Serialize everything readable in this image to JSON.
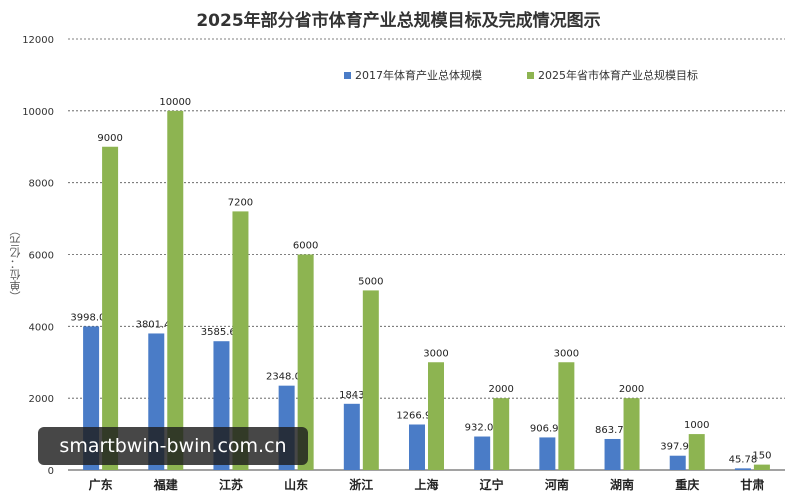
{
  "chart_data": {
    "type": "bar",
    "title": "2025年部分省市体育产业总规模目标及完成情况图示",
    "ylabel": "（单位：亿元）",
    "ylim": [
      0,
      12000
    ],
    "yticks": [
      0,
      2000,
      4000,
      6000,
      8000,
      10000,
      12000
    ],
    "grid": true,
    "legend_position": "top-right",
    "categories": [
      "广东",
      "福建",
      "江苏",
      "山东",
      "浙江",
      "上海",
      "辽宁",
      "河南",
      "湖南",
      "重庆",
      "甘肃"
    ],
    "series": [
      {
        "name": "2017年体育产业总体规模",
        "color": "#4a7cc7",
        "values": [
          3998.03,
          3801.41,
          3585.64,
          2348.01,
          1843,
          1266.93,
          932.09,
          906.99,
          863.74,
          397.91,
          45.78
        ],
        "labels": [
          "3998.03",
          "3801.41",
          "3585.64",
          "2348.01",
          "1843",
          "1266.93",
          "932.09",
          "906.99",
          "863.74",
          "397.91",
          "45.78"
        ]
      },
      {
        "name": "2025年省市体育产业总规模目标",
        "color": "#8db451",
        "values": [
          9000,
          10000,
          7200,
          6000,
          5000,
          3000,
          2000,
          3000,
          2000,
          1000,
          150
        ],
        "labels": [
          "9000",
          "10000",
          "7200",
          "6000",
          "5000",
          "3000",
          "2000",
          "3000",
          "2000",
          "1000",
          "150"
        ]
      }
    ]
  },
  "watermark": "smartbwin-bwin.com.cn"
}
